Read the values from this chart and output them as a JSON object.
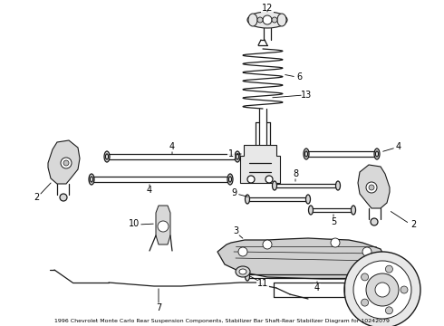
{
  "bg_color": "#ffffff",
  "line_color": "#1a1a1a",
  "label_color": "#000000",
  "fig_width": 4.9,
  "fig_height": 3.6
}
